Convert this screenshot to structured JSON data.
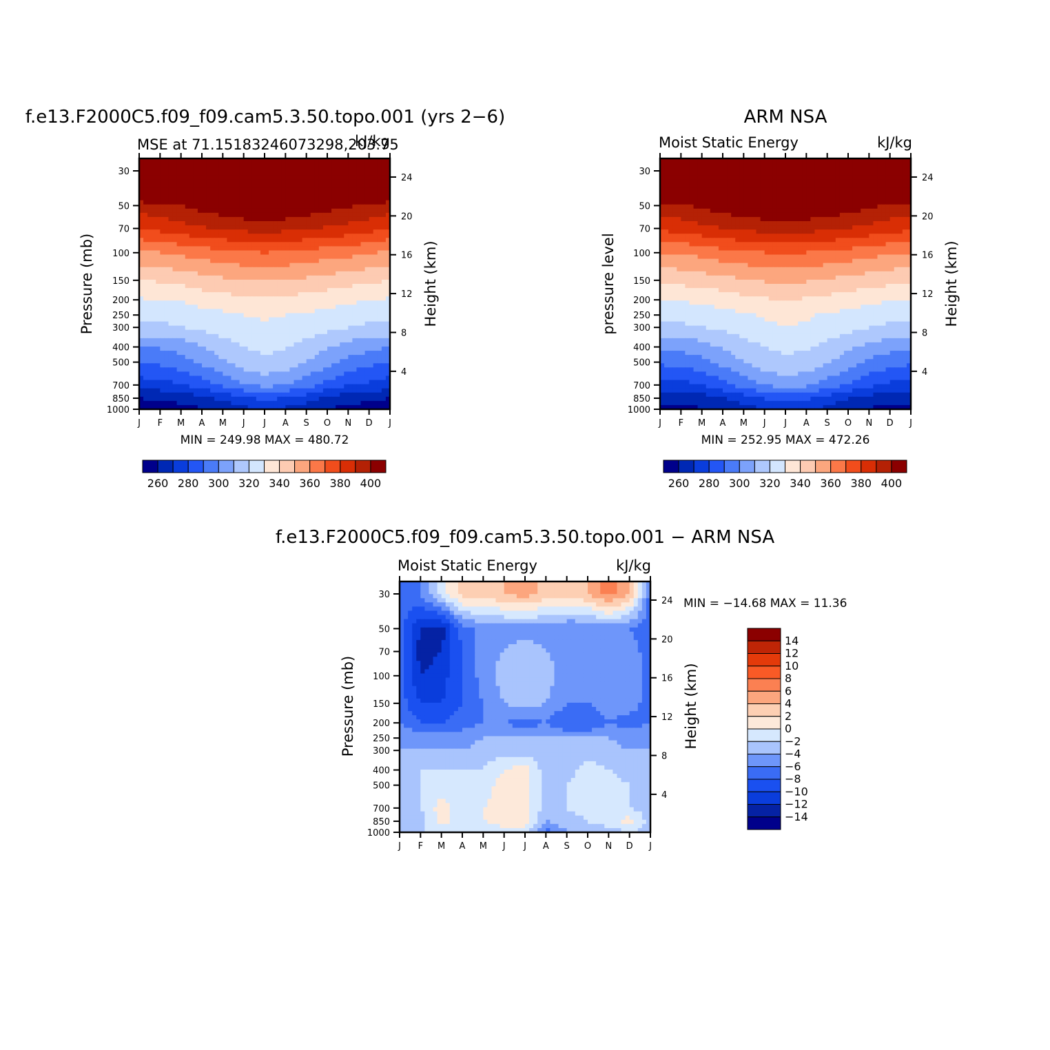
{
  "colors": {
    "mse_levels": [
      "#00008b",
      "#0028b4",
      "#0a3ddc",
      "#2356f5",
      "#4a7bf8",
      "#7ca2fb",
      "#aec8fd",
      "#d3e6fe",
      "#fee6d6",
      "#fdcbb2",
      "#fca67e",
      "#fb7848",
      "#f14d1c",
      "#d92e05",
      "#b42105",
      "#8b0000"
    ],
    "diff_levels": [
      "#00008b",
      "#0522a4",
      "#0a3ddc",
      "#1a50f0",
      "#3a6cf5",
      "#6e96fa",
      "#a9c4fd",
      "#d6e8fe",
      "#fde9da",
      "#fdcfb3",
      "#fca67e",
      "#fb8052",
      "#f95a26",
      "#e43a0a",
      "#bf2506",
      "#8b0000"
    ]
  },
  "panel1": {
    "title": "f.e13.F2000C5.f09_f09.cam5.3.50.topo.001 (yrs 2−6)",
    "subtitle_left": "MSE at 71.15183246073298,203.75",
    "subtitle_right": "kJ/kg",
    "ylabel": "Pressure (mb)",
    "ylabel_right": "Height (km)",
    "stats": "MIN = 249.98 MAX = 480.72"
  },
  "panel2": {
    "title": "ARM NSA",
    "subtitle_left": "Moist Static Energy",
    "subtitle_right": "kJ/kg",
    "ylabel": "pressure level",
    "ylabel_right": "Height (km)",
    "stats": "MIN = 252.95 MAX = 472.26"
  },
  "panel3": {
    "title": "f.e13.F2000C5.f09_f09.cam5.3.50.topo.001 − ARM NSA",
    "subtitle_left": "Moist Static Energy",
    "subtitle_right": "kJ/kg",
    "ylabel": "Pressure (mb)",
    "ylabel_right": "Height (km)",
    "stats": "MIN = −14.68 MAX =   11.36"
  },
  "chart_data": [
    {
      "type": "heatmap",
      "title": "f.e13.F2000C5.f09_f09.cam5.3.50.topo.001 (yrs 2−6)",
      "subtitle": "MSE at 71.15183246073298,203.75",
      "units": "kJ/kg",
      "xlabel": "",
      "ylabel": "Pressure (mb)",
      "ylabel_right": "Height (km)",
      "x_tick_labels": [
        "J",
        "F",
        "M",
        "A",
        "M",
        "J",
        "J",
        "A",
        "S",
        "O",
        "N",
        "D",
        "J"
      ],
      "y_tick_labels": [
        "30",
        "50",
        "70",
        "100",
        "150",
        "200",
        "250",
        "300",
        "400",
        "500",
        "700",
        "850",
        "1000"
      ],
      "y_right_tick_labels": [
        "24",
        "20",
        "16",
        "12",
        "8",
        "4"
      ],
      "y_scale": "log",
      "colorbar_labels": [
        "260",
        "280",
        "300",
        "320",
        "340",
        "360",
        "380",
        "400"
      ],
      "min": 249.98,
      "max": 480.72,
      "profile_mb": [
        1000,
        850,
        700,
        500,
        400,
        300,
        250,
        200,
        150,
        100,
        70,
        50,
        30
      ],
      "values": [
        [
          256,
          260,
          275,
          290,
          300,
          318,
          322,
          329,
          340,
          358,
          380,
          395,
          440
        ],
        [
          256,
          261,
          276,
          292,
          301,
          318,
          322,
          330,
          341,
          360,
          383,
          398,
          442
        ],
        [
          257,
          263,
          279,
          296,
          304,
          320,
          324,
          331,
          343,
          362,
          386,
          400,
          445
        ],
        [
          259,
          267,
          285,
          302,
          309,
          322,
          326,
          334,
          346,
          365,
          389,
          404,
          448
        ],
        [
          263,
          272,
          292,
          309,
          315,
          325,
          328,
          336,
          348,
          367,
          391,
          407,
          451
        ],
        [
          267,
          278,
          299,
          315,
          320,
          328,
          330,
          338,
          350,
          369,
          393,
          410,
          454
        ],
        [
          270,
          282,
          303,
          318,
          322,
          329,
          331,
          339,
          351,
          370,
          394,
          412,
          456
        ],
        [
          268,
          280,
          300,
          316,
          321,
          328,
          330,
          338,
          350,
          369,
          393,
          410,
          454
        ],
        [
          264,
          274,
          294,
          310,
          316,
          326,
          329,
          336,
          348,
          367,
          391,
          407,
          451
        ],
        [
          260,
          268,
          287,
          304,
          311,
          323,
          327,
          334,
          346,
          365,
          389,
          404,
          448
        ],
        [
          257,
          264,
          281,
          297,
          306,
          320,
          325,
          332,
          344,
          363,
          387,
          401,
          445
        ],
        [
          256,
          262,
          278,
          293,
          303,
          318,
          323,
          330,
          342,
          361,
          384,
          399,
          443
        ],
        [
          256,
          260,
          275,
          290,
          300,
          318,
          322,
          329,
          340,
          358,
          380,
          395,
          440
        ]
      ]
    },
    {
      "type": "heatmap",
      "title": "ARM NSA",
      "subtitle": "Moist Static Energy",
      "units": "kJ/kg",
      "xlabel": "",
      "ylabel": "pressure level",
      "ylabel_right": "Height (km)",
      "x_tick_labels": [
        "J",
        "F",
        "M",
        "A",
        "M",
        "J",
        "J",
        "A",
        "S",
        "O",
        "N",
        "D",
        "J"
      ],
      "y_tick_labels": [
        "30",
        "50",
        "70",
        "100",
        "150",
        "200",
        "250",
        "300",
        "400",
        "500",
        "700",
        "850",
        "1000"
      ],
      "y_right_tick_labels": [
        "24",
        "20",
        "16",
        "12",
        "8",
        "4"
      ],
      "y_scale": "log",
      "colorbar_labels": [
        "260",
        "280",
        "300",
        "320",
        "340",
        "360",
        "380",
        "400"
      ],
      "min": 252.95,
      "max": 472.26,
      "profile_mb": [
        1000,
        850,
        700,
        500,
        400,
        300,
        250,
        200,
        150,
        100,
        70,
        50,
        30
      ],
      "values": [
        [
          258,
          262,
          276,
          292,
          302,
          318,
          322,
          330,
          342,
          360,
          382,
          397,
          438
        ],
        [
          258,
          263,
          277,
          293,
          303,
          318,
          323,
          331,
          343,
          361,
          384,
          399,
          440
        ],
        [
          259,
          265,
          280,
          297,
          306,
          320,
          325,
          332,
          345,
          363,
          387,
          402,
          443
        ],
        [
          262,
          269,
          287,
          303,
          311,
          322,
          327,
          334,
          347,
          366,
          390,
          405,
          446
        ],
        [
          266,
          275,
          294,
          310,
          316,
          325,
          329,
          337,
          349,
          368,
          392,
          408,
          449
        ],
        [
          270,
          281,
          301,
          316,
          320,
          328,
          331,
          339,
          351,
          370,
          394,
          410,
          452
        ],
        [
          273,
          284,
          304,
          318,
          322,
          330,
          332,
          340,
          352,
          371,
          395,
          412,
          454
        ],
        [
          271,
          282,
          302,
          317,
          321,
          329,
          331,
          339,
          351,
          370,
          394,
          410,
          452
        ],
        [
          267,
          276,
          296,
          311,
          317,
          326,
          329,
          337,
          349,
          368,
          392,
          408,
          449
        ],
        [
          262,
          270,
          289,
          305,
          312,
          323,
          327,
          335,
          347,
          366,
          390,
          405,
          446
        ],
        [
          259,
          266,
          282,
          298,
          307,
          320,
          325,
          332,
          345,
          364,
          387,
          402,
          443
        ],
        [
          258,
          263,
          278,
          294,
          304,
          318,
          323,
          331,
          343,
          361,
          384,
          399,
          440
        ],
        [
          258,
          262,
          276,
          292,
          302,
          318,
          322,
          330,
          342,
          360,
          382,
          397,
          438
        ]
      ]
    },
    {
      "type": "heatmap",
      "title": "f.e13.F2000C5.f09_f09.cam5.3.50.topo.001 − ARM NSA",
      "subtitle": "Moist Static Energy",
      "units": "kJ/kg",
      "xlabel": "",
      "ylabel": "Pressure (mb)",
      "ylabel_right": "Height (km)",
      "x_tick_labels": [
        "J",
        "F",
        "M",
        "A",
        "M",
        "J",
        "J",
        "A",
        "S",
        "O",
        "N",
        "D",
        "J"
      ],
      "y_tick_labels": [
        "30",
        "50",
        "70",
        "100",
        "150",
        "200",
        "250",
        "300",
        "400",
        "500",
        "700",
        "850",
        "1000"
      ],
      "y_right_tick_labels": [
        "24",
        "20",
        "16",
        "12",
        "8",
        "4"
      ],
      "y_scale": "log",
      "colorbar_labels": [
        "14",
        "12",
        "10",
        "8",
        "6",
        "4",
        "2",
        "0",
        "−2",
        "−4",
        "−6",
        "−8",
        "−10",
        "−12",
        "−14"
      ],
      "min": -14.68,
      "max": 11.36,
      "profile_mb": [
        1000,
        850,
        700,
        500,
        400,
        300,
        250,
        200,
        150,
        100,
        70,
        50,
        30
      ],
      "values": [
        [
          -3,
          -3,
          -3,
          -3,
          -3,
          -4,
          -4,
          -6,
          -7,
          -7,
          -7,
          -7,
          -7
        ],
        [
          -2,
          -3,
          -2,
          -2,
          -2,
          -4,
          -5,
          -8,
          -10,
          -12,
          -13,
          -12,
          -6
        ],
        [
          -2,
          1,
          1,
          -1,
          -2,
          -4,
          -5,
          -8,
          -10,
          -11,
          -12,
          -13,
          -1
        ],
        [
          -2,
          -1,
          -1,
          -2,
          -2,
          -4,
          -5,
          -7,
          -8,
          -8,
          -8,
          -7,
          3
        ],
        [
          -2,
          0,
          0,
          -1,
          -2,
          -3,
          -4,
          -6,
          -6,
          -5,
          -5,
          -5,
          3
        ],
        [
          -1,
          1,
          1,
          1,
          0,
          -3,
          -4,
          -6,
          -4,
          -3,
          -4,
          -5,
          4
        ],
        [
          -1,
          1,
          1,
          1,
          1,
          -3,
          -4,
          -7,
          -3,
          -2,
          -3,
          -5,
          5
        ],
        [
          -7,
          -4,
          -3,
          -3,
          -3,
          -4,
          -4,
          -6,
          -4,
          -3,
          -4,
          -5,
          3
        ],
        [
          -4,
          -3,
          -2,
          -2,
          -3,
          -4,
          -4,
          -8,
          -6,
          -5,
          -5,
          -6,
          3
        ],
        [
          -3,
          -2,
          -1,
          -1,
          -1,
          -3,
          -4,
          -8,
          -6,
          -4,
          -5,
          -6,
          4
        ],
        [
          -3,
          -1,
          0,
          -1,
          -2,
          -3,
          -4,
          -6,
          -5,
          -4,
          -4,
          -5,
          7
        ],
        [
          -2,
          1,
          -2,
          -2,
          -3,
          -4,
          -5,
          -7,
          -5,
          -5,
          -5,
          -6,
          4
        ],
        [
          -3,
          -3,
          -3,
          -3,
          -3,
          -4,
          -4,
          -6,
          -7,
          -7,
          -7,
          -7,
          -7
        ]
      ],
      "levels": [
        -14,
        -12,
        -10,
        -8,
        -6,
        -4,
        -2,
        0,
        2,
        4,
        6,
        8,
        10,
        12,
        14
      ]
    }
  ]
}
